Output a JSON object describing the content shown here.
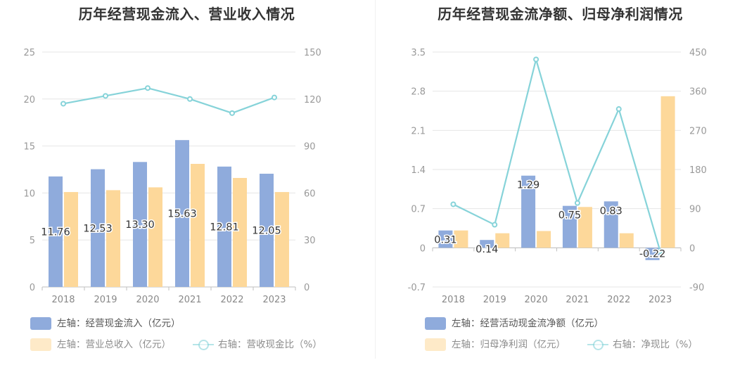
{
  "colors": {
    "bar_primary": "#8fabdc",
    "bar_secondary": "#fdd89a",
    "line": "#86d3d9",
    "axis_text": "#999999",
    "grid": "#e6e6e6",
    "label_text": "#333333"
  },
  "charts": [
    {
      "title": "历年经营现金流入、营业收入情况",
      "legend": {
        "bar1": "左轴：经营现金流入（亿元）",
        "bar2": "左轴：营业总收入（亿元）",
        "line": "右轴：营收现金比（%）"
      }
    },
    {
      "title": "历年经营现金流净额、归母净利润情况",
      "legend": {
        "bar1": "左轴：经营活动现金流净额（亿元）",
        "bar2": "左轴：归母净利润（亿元）",
        "line": "右轴：净现比（%）"
      }
    }
  ],
  "chart_data": [
    {
      "type": "bar",
      "title": "历年经营现金流入、营业收入情况",
      "categories": [
        "2018",
        "2019",
        "2020",
        "2021",
        "2022",
        "2023"
      ],
      "series": [
        {
          "name": "经营现金流入（亿元）",
          "axis": "left",
          "type": "bar",
          "values": [
            11.76,
            12.53,
            13.3,
            15.63,
            12.81,
            12.05
          ],
          "labels": [
            "11.76",
            "12.53",
            "13.30",
            "15.63",
            "12.81",
            "12.05"
          ]
        },
        {
          "name": "营业总收入（亿元）",
          "axis": "left",
          "type": "bar",
          "values": [
            10.1,
            10.3,
            10.6,
            13.1,
            11.6,
            10.1
          ]
        },
        {
          "name": "营收现金比（%）",
          "axis": "right",
          "type": "line",
          "values": [
            117,
            122,
            127,
            120,
            111,
            121
          ]
        }
      ],
      "left_axis": {
        "min": 0,
        "max": 25,
        "ticks": [
          "0",
          "5",
          "10",
          "15",
          "20",
          "25"
        ]
      },
      "right_axis": {
        "min": 0,
        "max": 150,
        "ticks": [
          "0",
          "30",
          "60",
          "90",
          "120",
          "150"
        ]
      }
    },
    {
      "type": "bar",
      "title": "历年经营现金流净额、归母净利润情况",
      "categories": [
        "2018",
        "2019",
        "2020",
        "2021",
        "2022",
        "2023"
      ],
      "series": [
        {
          "name": "经营活动现金流净额（亿元）",
          "axis": "left",
          "type": "bar",
          "values": [
            0.31,
            0.14,
            1.29,
            0.75,
            0.83,
            -0.22
          ],
          "labels": [
            "0.31",
            "0.14",
            "1.29",
            "0.75",
            "0.83",
            "-0.22"
          ]
        },
        {
          "name": "归母净利润（亿元）",
          "axis": "left",
          "type": "bar",
          "values": [
            0.31,
            0.26,
            0.3,
            0.73,
            0.26,
            2.71
          ]
        },
        {
          "name": "净现比（%）",
          "axis": "right",
          "type": "line",
          "values": [
            100,
            53,
            433,
            103,
            319,
            -8
          ]
        }
      ],
      "left_axis": {
        "min": -0.7,
        "max": 3.5,
        "ticks": [
          "-0.7",
          "0",
          "0.7",
          "1.4",
          "2.1",
          "2.8",
          "3.5"
        ]
      },
      "right_axis": {
        "min": -90,
        "max": 450,
        "ticks": [
          "-90",
          "0",
          "90",
          "180",
          "270",
          "360",
          "450"
        ]
      }
    }
  ]
}
